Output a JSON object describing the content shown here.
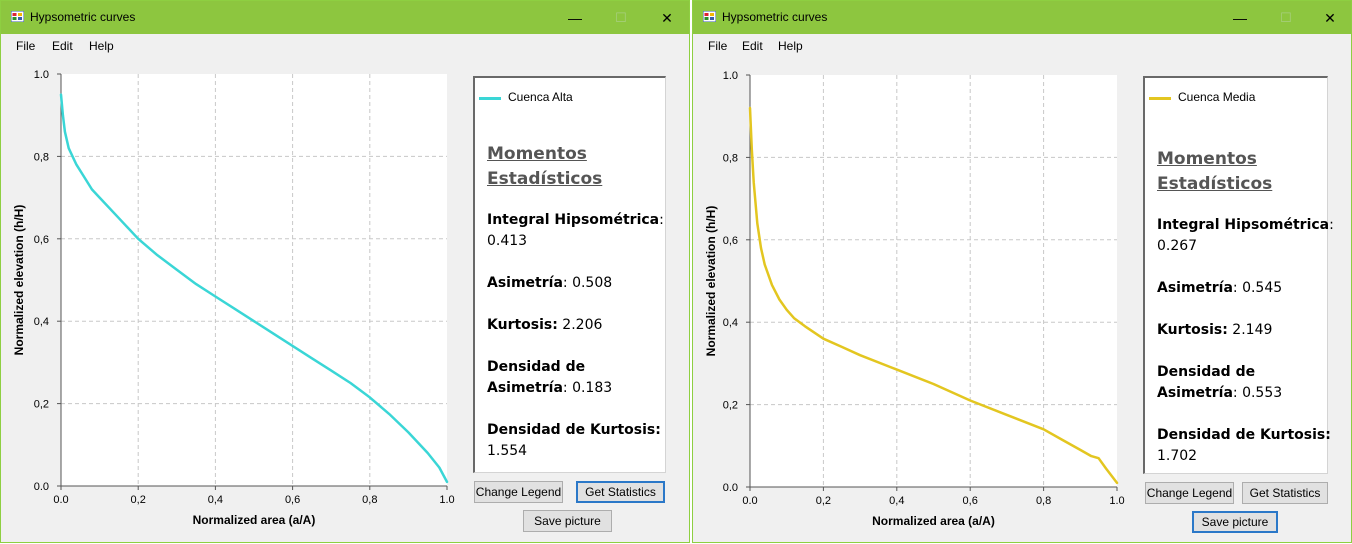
{
  "windows": [
    {
      "title": "Hypsometric curves",
      "controls": {
        "minimize": "—",
        "maximize": "☐",
        "close": "✕"
      },
      "menu": [
        "File",
        "Edit",
        "Help"
      ],
      "chart": {
        "xlabel": "Normalized area (a/A)",
        "ylabel": "Normalized elevation (h/H)",
        "xticks": [
          "0.0",
          "0,2",
          "0,4",
          "0,6",
          "0,8",
          "1.0"
        ],
        "yticks": [
          "0.0",
          "0,2",
          "0,4",
          "0,6",
          "0,8",
          "1.0"
        ]
      },
      "legend": {
        "label": "Cuenca Alta",
        "color": "#3ad6d6"
      },
      "stats": {
        "heading": "Momentos Estadísticos",
        "integral_label": "Integral Hipsométrica",
        "integral_value": ": 0.413",
        "asimetria_label": "Asimetría",
        "asimetria_value": ": 0.508",
        "kurtosis_label": "Kurtosis:",
        "kurtosis_value": " 2.206",
        "dens_asim_label": "Densidad de Asimetría",
        "dens_asim_value": ": 0.183",
        "dens_kurt_label": "Densidad de Kurtosis:",
        "dens_kurt_value": " 1.554"
      },
      "buttons": {
        "change_legend": "Change Legend",
        "get_statistics": "Get Statistics",
        "save_picture": "Save picture"
      }
    },
    {
      "title": "Hypsometric curves",
      "controls": {
        "minimize": "—",
        "maximize": "☐",
        "close": "✕"
      },
      "menu": [
        "File",
        "Edit",
        "Help"
      ],
      "chart": {
        "xlabel": "Normalized area (a/A)",
        "ylabel": "Normalized elevation (h/H)",
        "xticks": [
          "0.0",
          "0,2",
          "0,4",
          "0,6",
          "0,8",
          "1.0"
        ],
        "yticks": [
          "0.0",
          "0,2",
          "0,4",
          "0,6",
          "0,8",
          "1.0"
        ]
      },
      "legend": {
        "label": "Cuenca Media",
        "color": "#e3c620"
      },
      "stats": {
        "heading": "Momentos Estadísticos",
        "integral_label": "Integral Hipsométrica",
        "integral_value": ": 0.267",
        "asimetria_label": "Asimetría",
        "asimetria_value": ": 0.545",
        "kurtosis_label": "Kurtosis:",
        "kurtosis_value": " 2.149",
        "dens_asim_label": "Densidad de Asimetría",
        "dens_asim_value": ": 0.553",
        "dens_kurt_label": "Densidad de Kurtosis:",
        "dens_kurt_value": " 1.702"
      },
      "buttons": {
        "change_legend": "Change Legend",
        "get_statistics": "Get Statistics",
        "save_picture": "Save picture"
      }
    }
  ],
  "chart_data": [
    {
      "type": "line",
      "xlabel": "Normalized area (a/A)",
      "ylabel": "Normalized elevation (h/H)",
      "xlim": [
        0,
        1
      ],
      "ylim": [
        0,
        1
      ],
      "grid": true,
      "legend_position": "right",
      "series": [
        {
          "name": "Cuenca Alta",
          "color": "#3ad6d6",
          "x": [
            0,
            0.005,
            0.01,
            0.02,
            0.04,
            0.06,
            0.08,
            0.1,
            0.15,
            0.2,
            0.25,
            0.3,
            0.35,
            0.4,
            0.45,
            0.5,
            0.55,
            0.6,
            0.65,
            0.7,
            0.75,
            0.8,
            0.85,
            0.9,
            0.95,
            0.98,
            1.0
          ],
          "y": [
            0.95,
            0.9,
            0.86,
            0.82,
            0.78,
            0.75,
            0.72,
            0.7,
            0.65,
            0.6,
            0.56,
            0.525,
            0.49,
            0.46,
            0.43,
            0.4,
            0.37,
            0.34,
            0.31,
            0.28,
            0.25,
            0.215,
            0.175,
            0.13,
            0.08,
            0.045,
            0.01
          ]
        }
      ]
    },
    {
      "type": "line",
      "xlabel": "Normalized area (a/A)",
      "ylabel": "Normalized elevation (h/H)",
      "xlim": [
        0,
        1
      ],
      "ylim": [
        0,
        1
      ],
      "grid": true,
      "legend_position": "right",
      "series": [
        {
          "name": "Cuenca Media",
          "color": "#e3c620",
          "x": [
            0,
            0.005,
            0.01,
            0.02,
            0.03,
            0.04,
            0.06,
            0.08,
            0.1,
            0.12,
            0.15,
            0.2,
            0.25,
            0.3,
            0.4,
            0.5,
            0.6,
            0.7,
            0.8,
            0.85,
            0.9,
            0.93,
            0.95,
            0.97,
            1.0
          ],
          "y": [
            0.92,
            0.82,
            0.74,
            0.64,
            0.58,
            0.54,
            0.49,
            0.455,
            0.43,
            0.41,
            0.39,
            0.36,
            0.34,
            0.32,
            0.285,
            0.25,
            0.21,
            0.175,
            0.14,
            0.115,
            0.09,
            0.075,
            0.07,
            0.045,
            0.01
          ]
        }
      ]
    }
  ]
}
